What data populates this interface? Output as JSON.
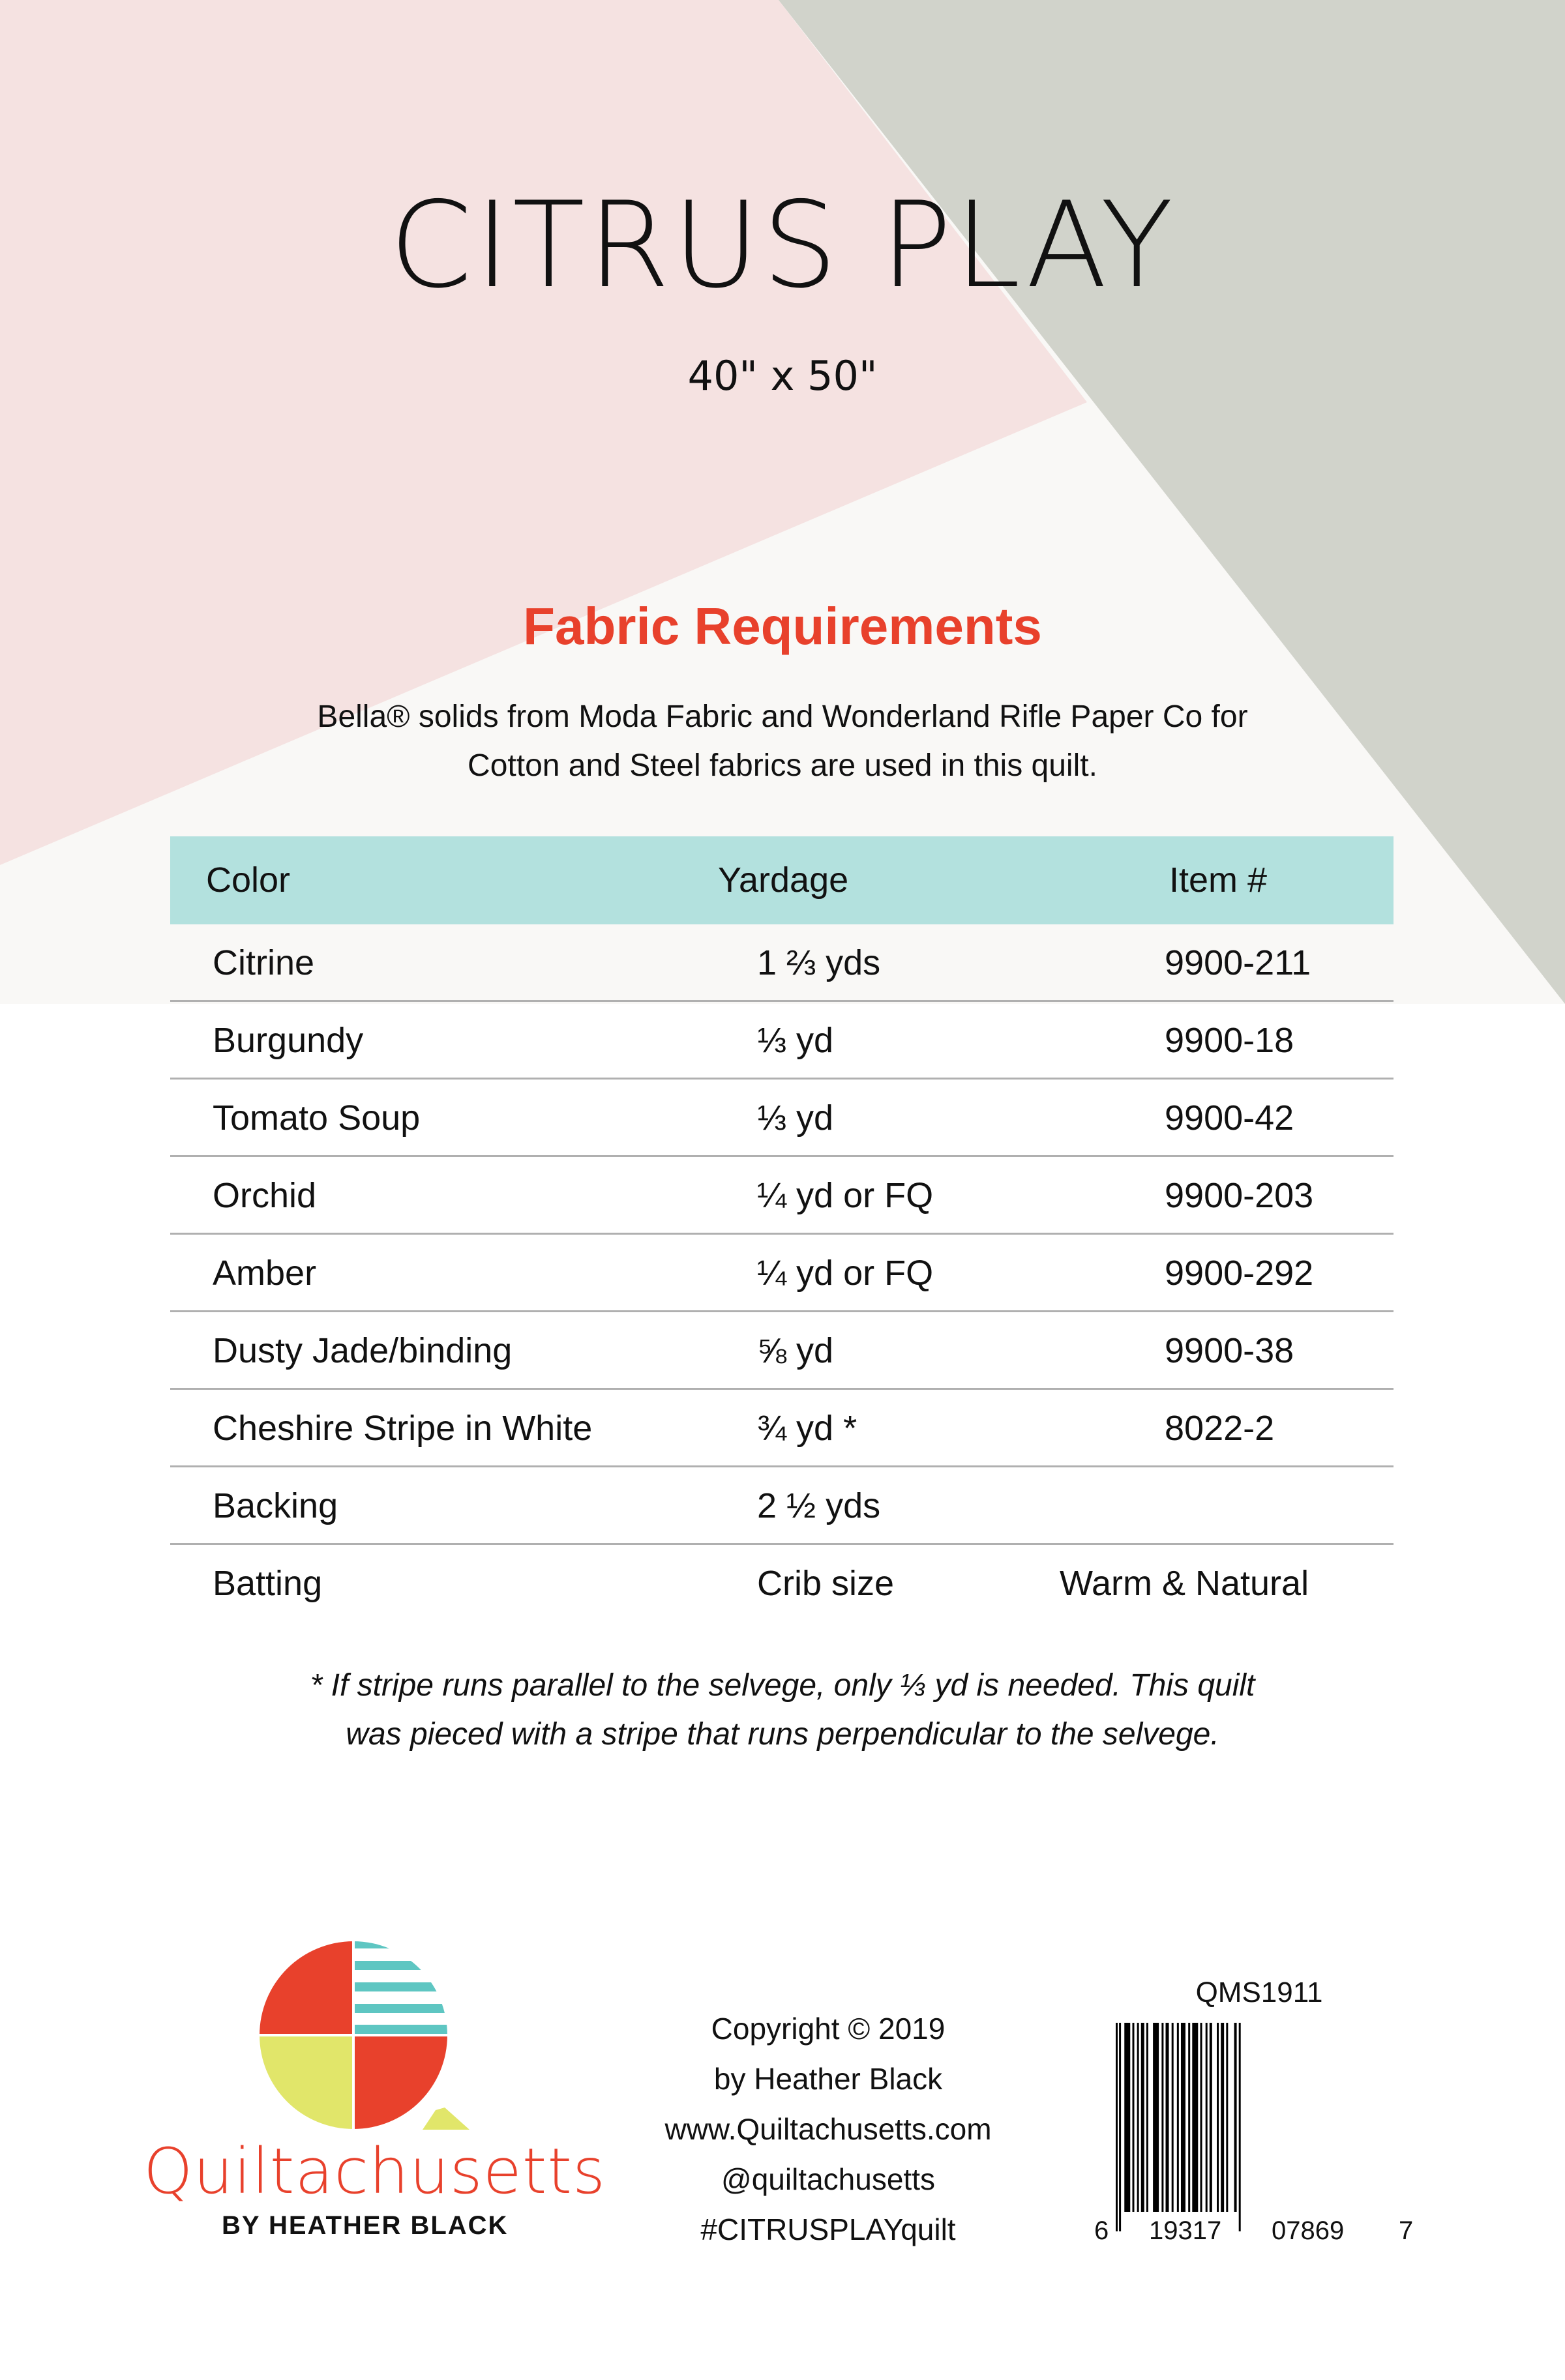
{
  "colors": {
    "pink": "#f5e2e1",
    "gray": "#d1d3cb",
    "offwhite": "#f9f8f6",
    "accent_red": "#e8412c",
    "header_teal": "#b3e1de",
    "logo_yellow": "#e1e66a",
    "logo_teal": "#5ec6c2"
  },
  "title": "CITRUS PLAY",
  "size": "40\" x 50\"",
  "heading": "Fabric Requirements",
  "intro": {
    "line1": "Bella® solids from Moda Fabric and Wonderland Rifle Paper Co for",
    "line2": "Cotton and Steel fabrics are used in this quilt."
  },
  "table": {
    "headers": [
      "Color",
      "Yardage",
      "Item #"
    ],
    "rows": [
      {
        "color": "Citrine",
        "yardage": "1 ⅔ yds",
        "item": "9900-211"
      },
      {
        "color": "Burgundy",
        "yardage": "⅓ yd",
        "item": "9900-18"
      },
      {
        "color": "Tomato Soup",
        "yardage": "⅓ yd",
        "item": "9900-42"
      },
      {
        "color": "Orchid",
        "yardage": "¼ yd or FQ",
        "item": "9900-203"
      },
      {
        "color": "Amber",
        "yardage": "¼ yd or FQ",
        "item": "9900-292"
      },
      {
        "color": "Dusty Jade/binding",
        "yardage": "⅝ yd",
        "item": "9900-38"
      },
      {
        "color": "Cheshire Stripe in White",
        "yardage": "¾ yd *",
        "item": "8022-2"
      },
      {
        "color": "Backing",
        "yardage": "2 ½ yds",
        "item": ""
      },
      {
        "color": "Batting",
        "yardage": "Crib size",
        "item": "Warm & Natural"
      }
    ]
  },
  "footnote": {
    "line1": "* If stripe runs parallel to the selvege, only ⅓ yd is needed. This quilt",
    "line2": "was pieced with a stripe that runs perpendicular to the selvege."
  },
  "logo": {
    "brand": "Quiltachusetts",
    "byline": "BY HEATHER BLACK"
  },
  "info": [
    "Copyright © 2019",
    "by Heather Black",
    "www.Quiltachusetts.com",
    "@quiltachusetts",
    "#CITRUSPLAYquilt"
  ],
  "barcode": {
    "sku": "QMS1911",
    "digits": [
      "6",
      "19317",
      "07869",
      "7"
    ]
  }
}
